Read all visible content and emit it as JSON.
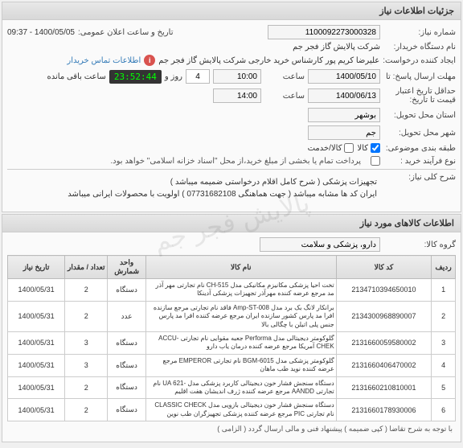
{
  "panel_title": "جزئیات اطلاعات نیاز",
  "fields": {
    "req_no_label": "شماره نیاز:",
    "req_no": "1100092273000328",
    "announce_label": "تاریخ و ساعت اعلان عمومی:",
    "announce": "1400/05/05 - 09:37",
    "buyer_label": "نام دستگاه خریدار:",
    "buyer": "شرکت پالایش گاز فجر جم",
    "creator_label": "ایجاد کننده درخواست:",
    "creator": "علیرضا کریم پور کارشناس خرید خارجی شرکت پالایش گاز فجر جم",
    "creator_info": "اطلاعات تماس خریدار",
    "deadline_label": "مهلت ارسال پاسخ: تا",
    "deadline_date": "1400/05/10",
    "time_label": "ساعت",
    "deadline_time": "10:00",
    "remaining_label": "روز و",
    "remaining_days": "4",
    "countdown": "23:52:44",
    "remaining_suffix": "ساعت باقی مانده",
    "validity_label": "حداقل تاریخ اعتبار",
    "validity_sublabel": "قیمت تا تاریخ:",
    "validity_date": "1400/06/13",
    "validity_time": "14:00",
    "province_label": "استان محل تحویل:",
    "province": "بوشهر",
    "city_label": "شهر محل تحویل:",
    "city": "جم",
    "category_label": "طبقه بندی موضوعی:",
    "cat_goods": "کالا",
    "cat_service": "کالا/خدمت",
    "process_label": "نوع فرآیند خرید :",
    "partial_note": "پرداخت تمام یا بخشی از مبلغ خرید،از محل \"اسناد خزانه اسلامی\" خواهد بود.",
    "desc_label": "شرح کلی نیاز:",
    "desc_line1": "تجهیزات پزشکی ( شرح کامل اقلام درخواستی ضمیمه میباشد )",
    "desc_line2": "ایران کد ها مشابه میباشد ( جهت هماهنگی  07731682108 ) اولویت با محصولات ایرانی میباشد",
    "goods_title": "اطلاعات کالاهای مورد نیاز",
    "group_label": "گروه کالا:",
    "group": "دارو، پزشکی و سلامت"
  },
  "table": {
    "headers": {
      "idx": "ردیف",
      "code": "کد کالا",
      "name": "نام کالا",
      "unit": "واحد شمارش",
      "qty": "تعداد / مقدار",
      "date": "تاریخ نیاز"
    },
    "rows": [
      {
        "idx": "1",
        "code": "2134710394650010",
        "name": "تخت احیا پزشکی مکانیزم مکانیکی مدل CH-515 نام تجارتی مهر آذر مد مرجع عرضه کننده مهرآذر تجهیزات پزشکی آدینکا",
        "unit": "دستگاه",
        "qty": "2",
        "date": "1400/05/31"
      },
      {
        "idx": "2",
        "code": "2134300968890007",
        "name": "برانکار لانگ بک برد مدل Amp-ST-008 فاقد نام تجارتی مرجع سازنده افرا مد پارس کشور سازنده ایران مرجع عرضه کننده افرا مد پارس جنس پلی اتیلن با چگالی بالا",
        "unit": "عدد",
        "qty": "2",
        "date": "1400/05/31"
      },
      {
        "idx": "3",
        "code": "2131660059580002",
        "name": "گلوکومتر دیجیتالی مدل Performa جعبه مقوایی نام تجارتی ACCU-CHEK آمریکا مرجع عرضه کننده درمان یاب دارو",
        "unit": "دستگاه",
        "qty": "3",
        "date": "1400/05/31"
      },
      {
        "idx": "4",
        "code": "2131660406470002",
        "name": "گلوکومتر پزشکی مدل BGM-6015 نام تجارتی EMPEROR مرجع عرضه کننده نوید طب ماهان",
        "unit": "دستگاه",
        "qty": "3",
        "date": "1400/05/31"
      },
      {
        "idx": "5",
        "code": "2131660210810001",
        "name": "دستگاه سنجش فشار خون دیجیتالی کاربرد پزشکی مدل -UA 621 نام تجارتی AANDD مرجع عرضه کننده ژرف اندیشان هفت اقلیم",
        "unit": "دستگاه",
        "qty": "2",
        "date": "1400/05/31"
      },
      {
        "idx": "6",
        "code": "2131660178930006",
        "name": "دستگاه سنجش فشار خون دیجیتالی بازویی مدل CLASSIC CHECK نام تجارتی PIC مرجع عرضه کننده پزشکی تجهیزگران طب نوین",
        "unit": "دستگاه",
        "qty": "2",
        "date": "1400/05/31"
      }
    ]
  },
  "footer": "با توجه به شرح تقاضا ( کپی ضمیمه ) پیشنهاد فنی و مالی ارسال گردد ( الزامی )"
}
